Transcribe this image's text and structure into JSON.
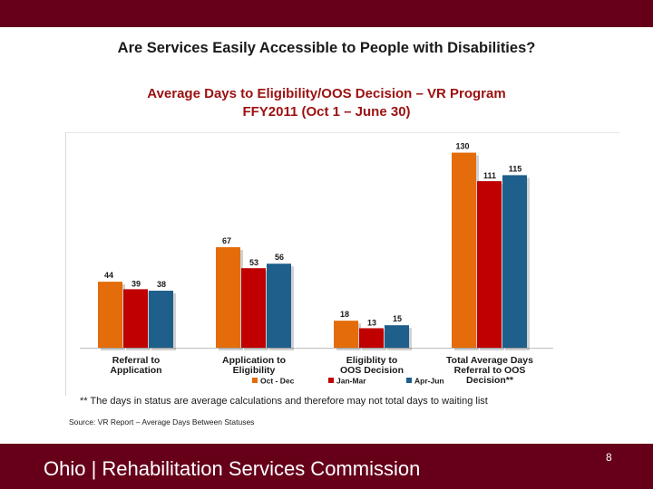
{
  "slide": {
    "title": "Are Services Easily Accessible to People with Disabilities?",
    "footnote": "** The days in status are average calculations and therefore may not total days to waiting list",
    "source": "Source:  VR Report – Average Days Between Statuses",
    "footer": "Ohio | Rehabilitation Services Commission",
    "page_number": "8"
  },
  "chart_data": {
    "type": "bar",
    "title": "Average Days to Eligibility/OOS Decision – VR Program",
    "subtitle": "FFY2011 (Oct 1 – June 30)",
    "categories": [
      [
        "Referral to",
        "Application"
      ],
      [
        "Application to",
        "Eligibility"
      ],
      [
        "Eligiblity to",
        "OOS Decision"
      ],
      [
        "Total Average Days",
        "Referral to OOS",
        "Decision**"
      ]
    ],
    "series": [
      {
        "name": "Oct - Dec",
        "values": [
          44,
          67,
          18,
          130
        ],
        "color": "#e46c0a"
      },
      {
        "name": "Jan-Mar",
        "values": [
          39,
          53,
          13,
          111
        ],
        "color": "#c00000"
      },
      {
        "name": "Apr-Jun",
        "values": [
          38,
          56,
          15,
          115
        ],
        "color": "#1f5f8b"
      }
    ],
    "ylim": [
      0,
      140
    ],
    "grid": false,
    "legend": "bottom"
  },
  "colors": {
    "band": "#660019",
    "chart_title": "#9c1010"
  }
}
